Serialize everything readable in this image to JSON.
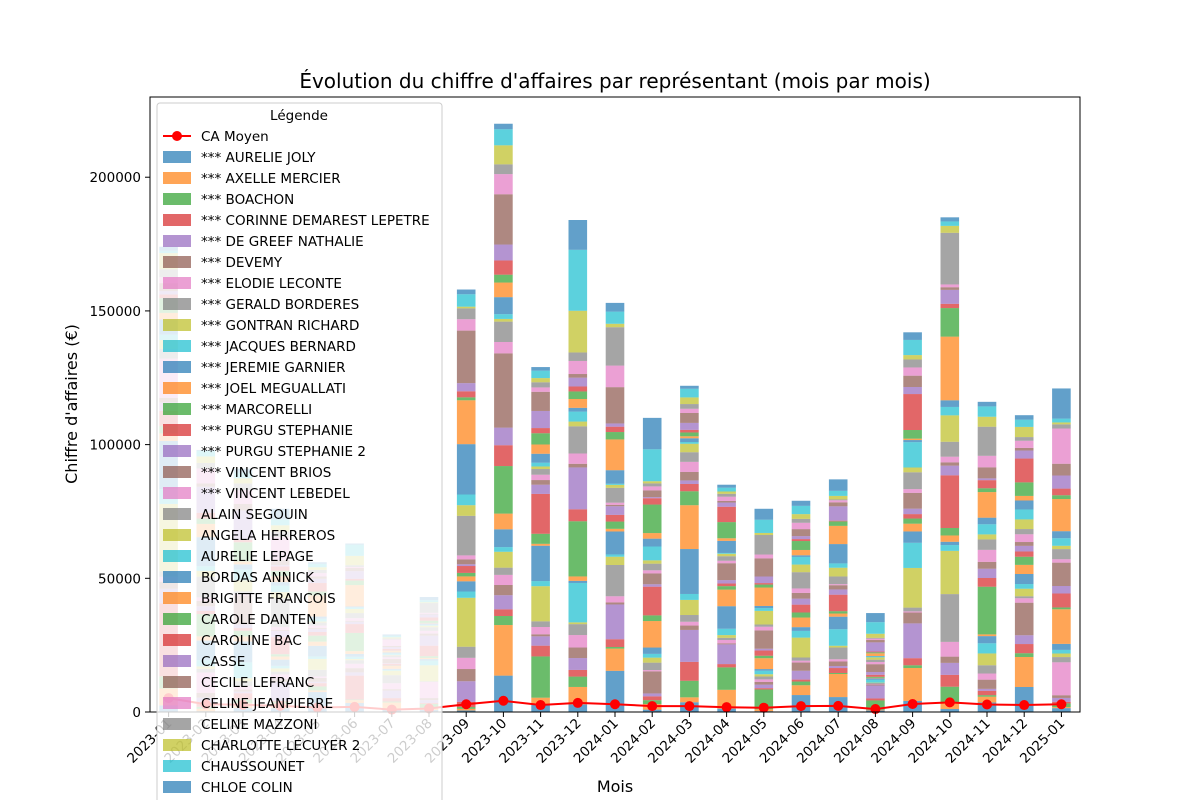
{
  "chart_data": {
    "type": "bar",
    "stacked": true,
    "title": "Évolution du chiffre d'affaires par représentant (mois par mois)",
    "xlabel": "Mois",
    "ylabel": "Chiffre d'affaires (€)",
    "ylim": [
      0,
      230000
    ],
    "yticks": [
      0,
      50000,
      100000,
      150000,
      200000
    ],
    "grid": false,
    "legend_title": "Légende",
    "legend_position": "upper left",
    "categories": [
      "2023-01",
      "2023-02",
      "2023-03",
      "2023-04",
      "2023-05",
      "2023-06",
      "2023-07",
      "2023-08",
      "2023-09",
      "2023-10",
      "2023-11",
      "2023-12",
      "2024-01",
      "2024-02",
      "2024-03",
      "2024-04",
      "2024-05",
      "2024-06",
      "2024-07",
      "2024-08",
      "2024-09",
      "2024-10",
      "2024-11",
      "2024-12",
      "2025-01"
    ],
    "totals": [
      174000,
      98000,
      91000,
      76000,
      56000,
      63000,
      29000,
      43000,
      158000,
      220000,
      129000,
      184000,
      153000,
      110000,
      122000,
      85000,
      76000,
      79000,
      87000,
      37000,
      142000,
      185000,
      116000,
      111000,
      121000
    ],
    "line_series": {
      "name": "CA Moyen",
      "color": "#ff0000",
      "values": [
        5200,
        2900,
        2700,
        2300,
        1700,
        1900,
        900,
        1300,
        2900,
        4200,
        2600,
        3400,
        2900,
        2200,
        2200,
        1800,
        1600,
        2200,
        2300,
        1100,
        3000,
        3600,
        2800,
        2600,
        2900
      ]
    },
    "series_colors": [
      "#1f77b4",
      "#ff7f0e",
      "#2ca02c",
      "#d62728",
      "#9467bd",
      "#8c564b",
      "#e377c2",
      "#7f7f7f",
      "#bcbd22",
      "#17becf"
    ],
    "series_names": [
      "*** AURELIE JOLY",
      "*** AXELLE MERCIER",
      "*** BOACHON",
      "*** CORINNE DEMAREST LEPETRE",
      "*** DE GREEF NATHALIE",
      "*** DEVEMY",
      "*** ELODIE LECONTE",
      "*** GERALD BORDERES",
      "*** GONTRAN RICHARD",
      "*** JACQUES BERNARD",
      "*** JEREMIE GARNIER",
      "*** JOEL MEGUALLATI",
      "*** MARCORELLI",
      "*** PURGU STEPHANIE",
      "*** PURGU STEPHANIE 2",
      "*** VINCENT BRIOS",
      "*** VINCENT LEBEDEL",
      "ALAIN SEGOUIN",
      "ANGELA HERREROS",
      "AURELIE LEPAGE",
      "BORDAS ANNICK",
      "BRIGITTE FRANCOIS",
      "CAROLE DANTEN",
      "CAROLINE BAC",
      "CASSE",
      "CECILE LEFRANC",
      "CELINE JEANPIERRE",
      "CELINE MAZZONI",
      "CHARLOTTE LECUYER 2",
      "CHAUSSOUNET",
      "CHLOE COLIN"
    ]
  }
}
